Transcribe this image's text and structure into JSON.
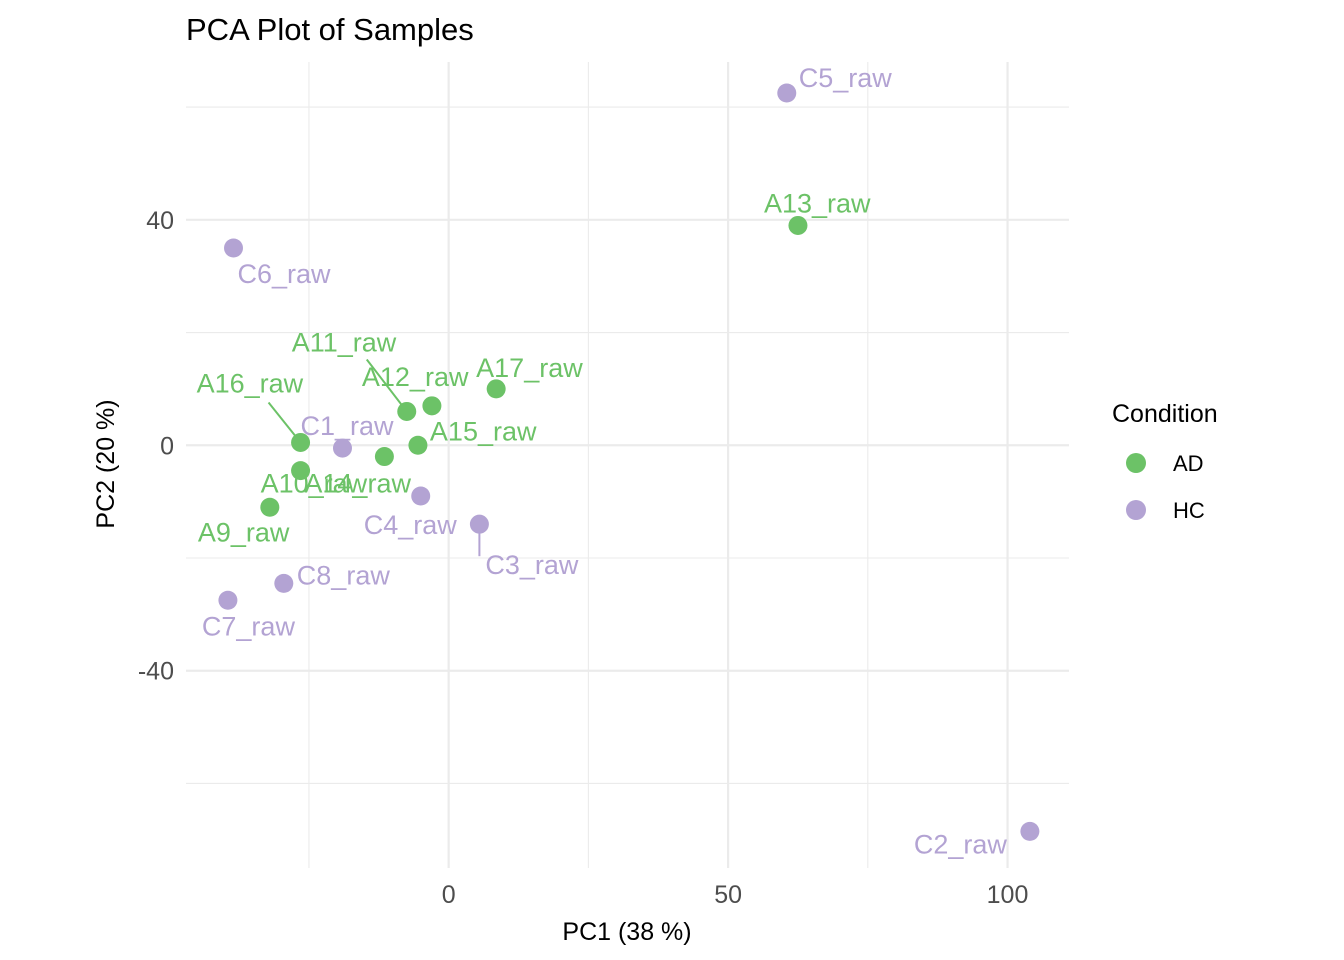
{
  "chart_data": {
    "type": "scatter",
    "title": "PCA Plot of Samples",
    "xlabel": "PC1 (38 %)",
    "ylabel": "PC2 (20 %)",
    "xlim": [
      -47,
      111
    ],
    "ylim": [
      -75,
      68
    ],
    "x_ticks": [
      0,
      50,
      100
    ],
    "x_tick_labels": [
      "0",
      "50",
      "100"
    ],
    "y_ticks": [
      -40,
      0,
      40
    ],
    "y_tick_labels": [
      "-40",
      "0",
      "40"
    ],
    "grid": true,
    "legend": {
      "title": "Condition",
      "position": "right",
      "entries": [
        {
          "name": "AD",
          "color": "#6cc267"
        },
        {
          "name": "HC",
          "color": "#b3a3d3"
        }
      ]
    },
    "series": [
      {
        "name": "AD",
        "color": "#6cc267",
        "points": [
          {
            "label": "A9_raw",
            "x": -32.0,
            "y": -11.0
          },
          {
            "label": "A10_raw",
            "x": -26.5,
            "y": -4.5
          },
          {
            "label": "A11_raw",
            "x": -7.5,
            "y": 6.0
          },
          {
            "label": "A12_raw",
            "x": -3.0,
            "y": 7.0
          },
          {
            "label": "A13_raw",
            "x": 62.5,
            "y": 39.0
          },
          {
            "label": "A14_raw",
            "x": -11.5,
            "y": -2.0
          },
          {
            "label": "A15_raw",
            "x": -5.5,
            "y": 0.0
          },
          {
            "label": "A16_raw",
            "x": -26.5,
            "y": 0.5
          },
          {
            "label": "A17_raw",
            "x": 8.5,
            "y": 10.0
          }
        ]
      },
      {
        "name": "HC",
        "color": "#b3a3d3",
        "points": [
          {
            "label": "C1_raw",
            "x": -19.0,
            "y": -0.5
          },
          {
            "label": "C2_raw",
            "x": 104.0,
            "y": -68.5
          },
          {
            "label": "C3_raw",
            "x": 5.5,
            "y": -14.0
          },
          {
            "label": "C4_raw",
            "x": -5.0,
            "y": -9.0
          },
          {
            "label": "C5_raw",
            "x": 60.5,
            "y": 62.5
          },
          {
            "label": "C6_raw",
            "x": -38.5,
            "y": 35.0
          },
          {
            "label": "C7_raw",
            "x": -39.5,
            "y": -27.5
          },
          {
            "label": "C8_raw",
            "x": -29.5,
            "y": -24.5
          }
        ]
      }
    ]
  }
}
